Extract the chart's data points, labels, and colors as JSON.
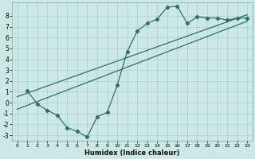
{
  "xlabel": "Humidex (Indice chaleur)",
  "bg_color": "#cce8e4",
  "grid_color": "#aacfca",
  "line_color": "#2b7167",
  "xlim": [
    -0.5,
    23.5
  ],
  "ylim": [
    -3.5,
    9.2
  ],
  "xticks": [
    0,
    1,
    2,
    3,
    4,
    5,
    6,
    7,
    8,
    9,
    10,
    11,
    12,
    13,
    14,
    15,
    16,
    17,
    18,
    19,
    20,
    21,
    22,
    23
  ],
  "yticks": [
    -3,
    -2,
    -1,
    0,
    1,
    2,
    3,
    4,
    5,
    6,
    7,
    8
  ],
  "curve1_x": [
    1,
    2,
    3,
    4,
    5,
    6,
    7,
    8,
    9,
    10,
    11,
    12,
    13,
    14,
    15,
    16,
    17,
    18,
    19,
    20,
    21,
    22,
    23
  ],
  "curve1_y": [
    1.1,
    -0.1,
    -0.7,
    -1.15,
    -2.3,
    -2.65,
    -3.15,
    -1.3,
    -0.9,
    1.6,
    4.7,
    6.6,
    7.3,
    7.7,
    8.8,
    8.9,
    7.3,
    7.9,
    7.8,
    7.8,
    7.6,
    7.8,
    7.8
  ],
  "curve2_x": [
    0,
    23
  ],
  "curve2_y": [
    0.55,
    8.1
  ],
  "curve3_x": [
    0,
    23
  ],
  "curve3_y": [
    -0.6,
    7.5
  ],
  "markersize": 2.2,
  "linewidth": 0.9,
  "xlabel_fontsize": 6.0,
  "tick_fontsize_x": 4.5,
  "tick_fontsize_y": 5.5
}
